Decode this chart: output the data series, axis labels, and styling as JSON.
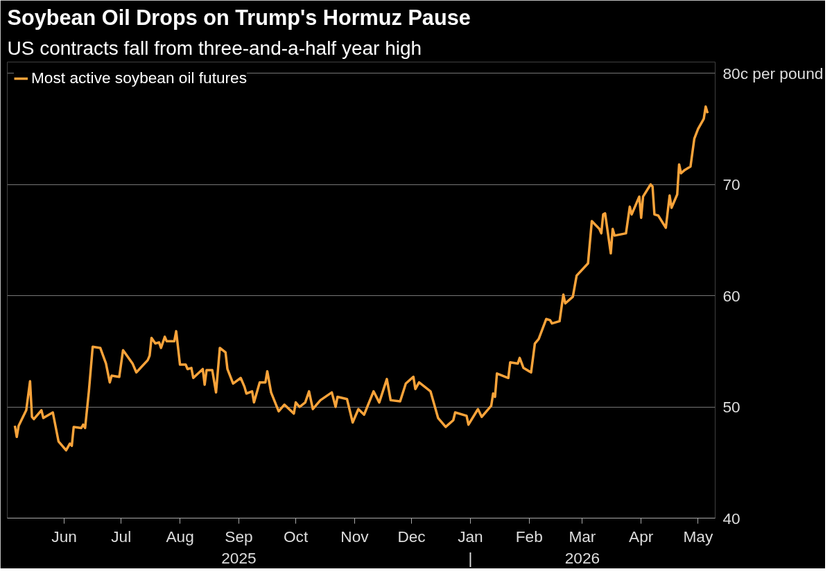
{
  "chart_data": {
    "type": "line",
    "title": "Soybean Oil Drops on Trump's Hormuz Pause",
    "subtitle": "US contracts fall from three-and-a-half year high",
    "x": [
      "2025-05-06",
      "2025-05-07",
      "2025-05-08",
      "2025-05-12",
      "2025-05-14",
      "2025-05-15",
      "2025-05-16",
      "2025-05-20",
      "2025-05-21",
      "2025-05-26",
      "2025-05-29",
      "2025-06-02",
      "2025-06-04",
      "2025-06-05",
      "2025-06-06",
      "2025-06-10",
      "2025-06-11",
      "2025-06-12",
      "2025-06-14",
      "2025-06-16",
      "2025-06-20",
      "2025-06-23",
      "2025-06-25",
      "2025-06-26",
      "2025-06-30",
      "2025-07-02",
      "2025-07-07",
      "2025-07-09",
      "2025-07-15",
      "2025-07-16",
      "2025-07-17",
      "2025-07-19",
      "2025-07-21",
      "2025-07-22",
      "2025-07-24",
      "2025-07-25",
      "2025-07-29",
      "2025-07-30",
      "2025-08-01",
      "2025-08-04",
      "2025-08-05",
      "2025-08-07",
      "2025-08-08",
      "2025-08-13",
      "2025-08-14",
      "2025-08-15",
      "2025-08-18",
      "2025-08-20",
      "2025-08-22",
      "2025-08-25",
      "2025-08-26",
      "2025-08-29",
      "2025-09-02",
      "2025-09-04",
      "2025-09-05",
      "2025-09-08",
      "2025-09-09",
      "2025-09-12",
      "2025-09-15",
      "2025-09-16",
      "2025-09-18",
      "2025-09-22",
      "2025-09-25",
      "2025-09-30",
      "2025-10-01",
      "2025-10-03",
      "2025-10-06",
      "2025-10-08",
      "2025-10-10",
      "2025-10-14",
      "2025-10-20",
      "2025-10-22",
      "2025-10-23",
      "2025-10-28",
      "2025-10-31",
      "2025-11-03",
      "2025-11-06",
      "2025-11-11",
      "2025-11-14",
      "2025-11-18",
      "2025-11-20",
      "2025-11-25",
      "2025-11-28",
      "2025-12-02",
      "2025-12-03",
      "2025-12-05",
      "2025-12-11",
      "2025-12-15",
      "2025-12-19",
      "2025-12-23",
      "2025-12-24",
      "2025-12-30",
      "2025-12-31",
      "2026-01-05",
      "2026-01-07",
      "2026-01-12",
      "2026-01-13",
      "2026-01-14",
      "2026-01-15",
      "2026-01-21",
      "2026-01-22",
      "2026-01-26",
      "2026-01-27",
      "2026-01-29",
      "2026-02-02",
      "2026-02-04",
      "2026-02-06",
      "2026-02-10",
      "2026-02-12",
      "2026-02-13",
      "2026-02-17",
      "2026-02-19",
      "2026-02-20",
      "2026-02-24",
      "2026-02-26",
      "2026-03-04",
      "2026-03-06",
      "2026-03-10",
      "2026-03-11",
      "2026-03-12",
      "2026-03-13",
      "2026-03-16",
      "2026-03-17",
      "2026-03-18",
      "2026-03-24",
      "2026-03-26",
      "2026-03-27",
      "2026-03-31",
      "2026-04-01",
      "2026-04-02",
      "2026-04-06",
      "2026-04-07",
      "2026-04-08",
      "2026-04-10",
      "2026-04-14",
      "2026-04-16",
      "2026-04-17",
      "2026-04-20",
      "2026-04-21",
      "2026-04-22",
      "2026-04-24",
      "2026-04-27",
      "2026-04-29",
      "2026-05-01",
      "2026-05-04",
      "2026-05-05",
      "2026-05-06"
    ],
    "series": [
      {
        "name": "Most active soybean oil futures",
        "color": "#f9a33a",
        "values": [
          48.3,
          47.3,
          48.3,
          49.7,
          52.3,
          49.1,
          48.9,
          49.7,
          49.0,
          49.5,
          46.9,
          46.1,
          46.7,
          46.5,
          48.2,
          48.1,
          48.4,
          48.1,
          51.4,
          55.4,
          55.3,
          53.9,
          52.2,
          52.8,
          52.7,
          55.1,
          53.9,
          53.1,
          54.2,
          54.6,
          56.2,
          55.7,
          55.8,
          55.3,
          56.3,
          55.9,
          55.9,
          56.8,
          53.8,
          53.8,
          53.4,
          53.5,
          52.6,
          53.4,
          52.0,
          53.3,
          53.3,
          51.3,
          55.3,
          54.9,
          53.4,
          52.1,
          52.6,
          51.8,
          51.2,
          51.4,
          50.4,
          52.2,
          52.2,
          53.2,
          51.3,
          49.6,
          50.2,
          49.4,
          50.4,
          50.0,
          50.4,
          51.4,
          49.8,
          50.6,
          51.3,
          50.0,
          50.9,
          50.7,
          48.6,
          49.8,
          49.3,
          51.4,
          50.4,
          52.5,
          50.6,
          50.5,
          52.1,
          52.7,
          51.6,
          52.2,
          51.4,
          49.0,
          48.2,
          48.8,
          49.5,
          49.2,
          48.4,
          49.8,
          49.1,
          50.1,
          51.2,
          50.9,
          53.0,
          52.6,
          54.0,
          53.9,
          54.4,
          53.5,
          53.1,
          55.7,
          56.1,
          57.9,
          57.8,
          57.5,
          57.7,
          60.1,
          59.3,
          59.9,
          61.8,
          62.9,
          66.7,
          66.0,
          65.6,
          67.3,
          67.4,
          63.8,
          66.0,
          65.4,
          65.6,
          68.0,
          67.3,
          68.9,
          67.0,
          68.9,
          70.0,
          69.8,
          67.3,
          67.2,
          66.1,
          69.0,
          67.9,
          69.1,
          71.8,
          71.0,
          71.3,
          71.6,
          74.1,
          75.0,
          75.9,
          77.0,
          76.4
        ]
      }
    ],
    "xlim": [
      "2025-05-02",
      "2026-05-10"
    ],
    "xticks": [
      {
        "value": "2025-06-01",
        "label": "Jun"
      },
      {
        "value": "2025-07-01",
        "label": "Jul"
      },
      {
        "value": "2025-08-01",
        "label": "Aug"
      },
      {
        "value": "2025-09-01",
        "label": "Sep\n2025"
      },
      {
        "value": "2025-10-01",
        "label": "Oct"
      },
      {
        "value": "2025-11-01",
        "label": "Nov"
      },
      {
        "value": "2025-12-01",
        "label": "Dec"
      },
      {
        "value": "2026-01-01",
        "label": "Jan\n|"
      },
      {
        "value": "2026-02-01",
        "label": "Feb"
      },
      {
        "value": "2026-03-01",
        "label": "Mar\n2026"
      },
      {
        "value": "2026-04-01",
        "label": "Apr"
      },
      {
        "value": "2026-05-01",
        "label": "May"
      }
    ],
    "ylim": [
      40,
      81
    ],
    "yticks": [
      40,
      50,
      60,
      70,
      {
        "value": 80,
        "label": "80c per pound"
      }
    ],
    "grid": "y",
    "legend": "top left"
  }
}
